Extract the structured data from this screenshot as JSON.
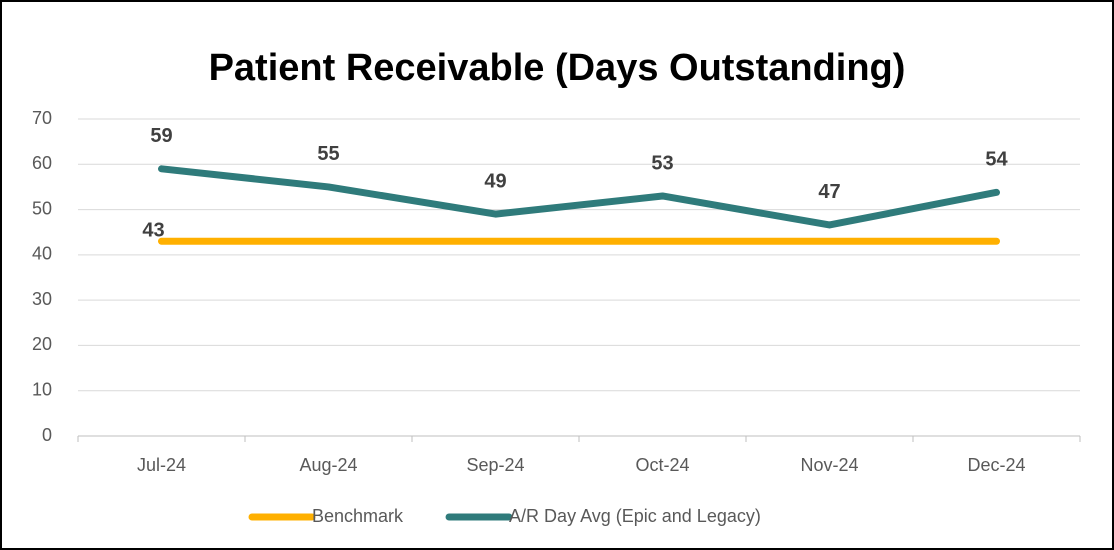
{
  "chart_data": {
    "type": "line",
    "title": "Patient Receivable (Days Outstanding)",
    "categories": [
      "Jul-24",
      "Aug-24",
      "Sep-24",
      "Oct-24",
      "Nov-24",
      "Dec-24"
    ],
    "series": [
      {
        "name": "Benchmark",
        "color": "#FFB000",
        "values": [
          43,
          43,
          43,
          43,
          43,
          43
        ],
        "value_labels": [
          "43",
          null,
          null,
          null,
          null,
          null
        ]
      },
      {
        "name": "A/R Day Avg (Epic and Legacy)",
        "color": "#2F7B7B",
        "values": [
          59,
          55,
          49,
          53,
          46.6,
          53.8
        ],
        "value_labels": [
          "59",
          "55",
          "49",
          "53",
          "47",
          "54"
        ]
      }
    ],
    "ylim": [
      0,
      70
    ],
    "yticks": [
      0,
      10,
      20,
      30,
      40,
      50,
      60,
      70
    ],
    "grid": true,
    "legend": "bottom"
  }
}
